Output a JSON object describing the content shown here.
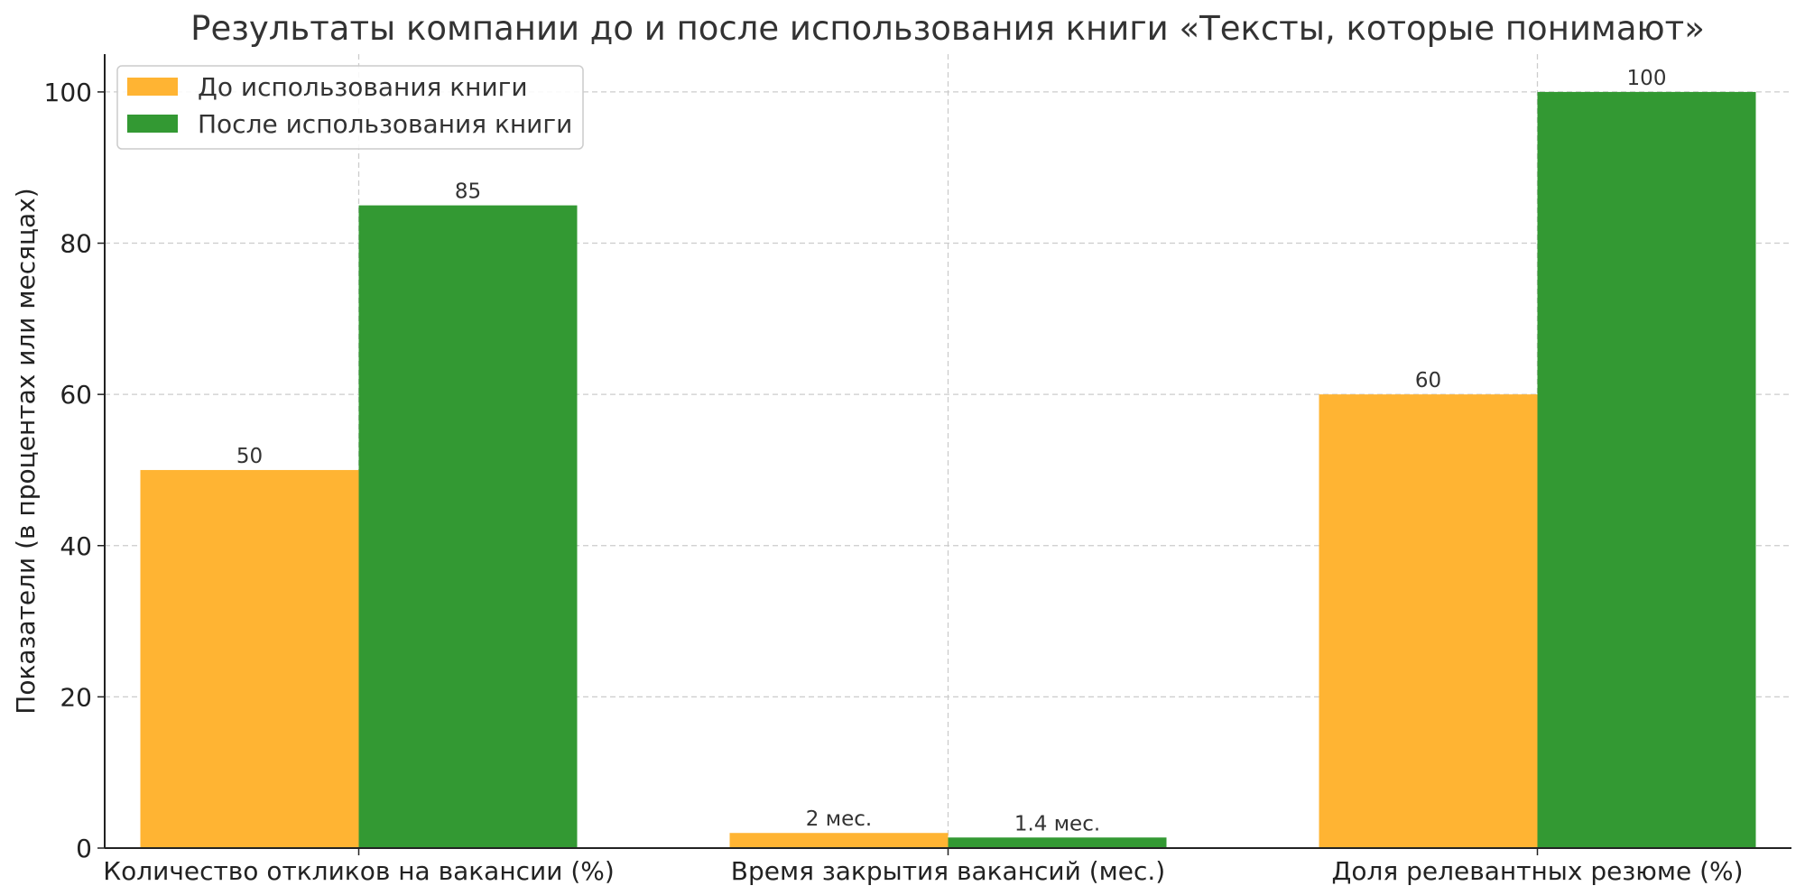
{
  "chart_data": {
    "type": "bar",
    "title": "Результаты компании до и после использования книги «Тексты, которые понимают»",
    "xlabel": "",
    "ylabel": "Показатели (в процентах или месяцах)",
    "categories": [
      "Количество откликов на вакансии (%)",
      "Время закрытия вакансий (мес.)",
      "Доля релевантных резюме (%)"
    ],
    "series": [
      {
        "name": "До использования книги",
        "color": "#FFB433",
        "values": [
          50,
          2,
          60
        ],
        "labels": [
          "50",
          "2 мес.",
          "60"
        ]
      },
      {
        "name": "После использования книги",
        "color": "#339933",
        "values": [
          85,
          1.4,
          100
        ],
        "labels": [
          "85",
          "1.4 мес.",
          "100"
        ]
      }
    ],
    "ylim": [
      0,
      105
    ],
    "yticks": [
      0,
      20,
      40,
      60,
      80,
      100
    ],
    "grid": true,
    "legend_position": "top-left"
  }
}
